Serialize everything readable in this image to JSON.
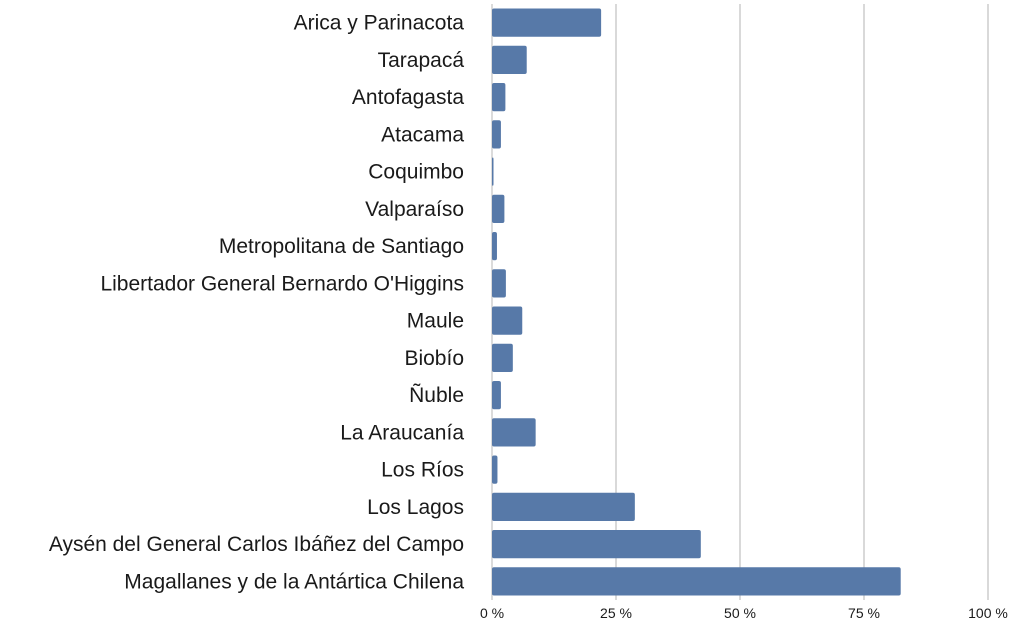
{
  "chart_data": {
    "type": "bar",
    "orientation": "horizontal",
    "title": "",
    "xlabel": "",
    "ylabel": "",
    "categories": [
      "Arica y Parinacota",
      "Tarapacá",
      "Antofagasta",
      "Atacama",
      "Coquimbo",
      "Valparaíso",
      "Metropolitana de Santiago",
      "Libertador General Bernardo O'Higgins",
      "Maule",
      "Biobío",
      "Ñuble",
      "La Araucanía",
      "Los Ríos",
      "Los Lagos",
      "Aysén del General Carlos Ibáñez del Campo",
      "Magallanes y de la Antártica Chilena"
    ],
    "values": [
      22,
      7,
      2.7,
      1.8,
      0.3,
      2.5,
      1,
      2.8,
      6.1,
      4.2,
      1.8,
      8.8,
      1.1,
      28.8,
      42.1,
      82.4
    ],
    "unit": "%",
    "xlim": [
      0,
      100
    ],
    "xticks": [
      0,
      25,
      50,
      75,
      100
    ],
    "xtick_labels": [
      "0 %",
      "25 %",
      "50 %",
      "75 %",
      "100 %"
    ],
    "grid": "vertical",
    "legend": "none",
    "bar_color": "#5779a8"
  }
}
